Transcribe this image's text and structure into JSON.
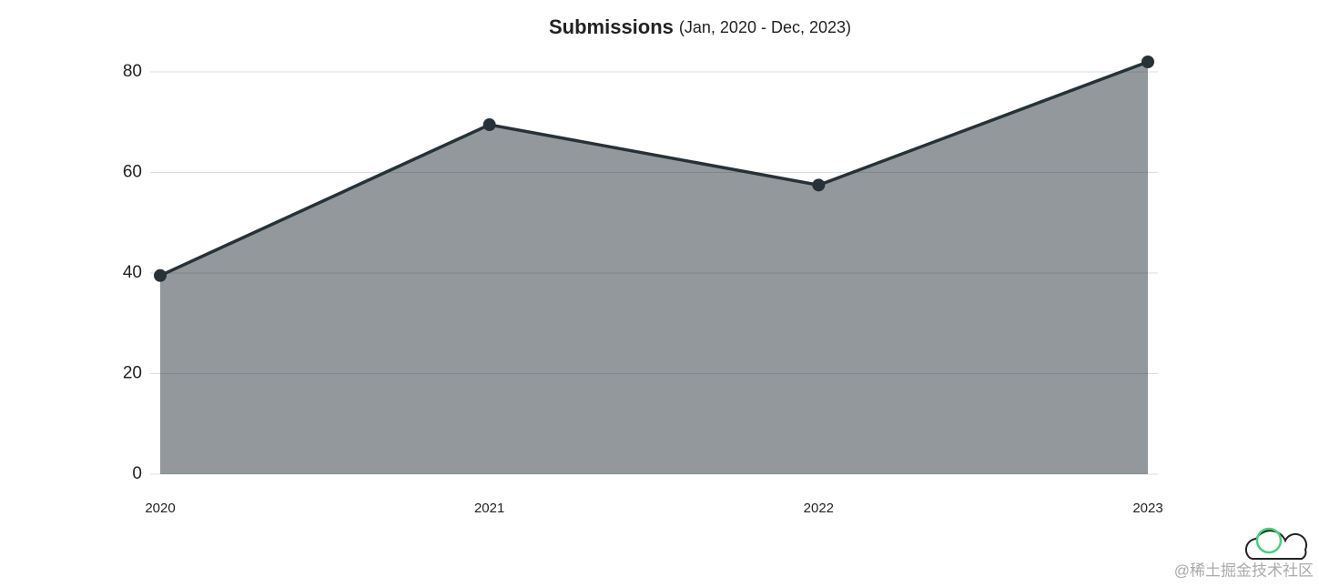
{
  "chart_data": {
    "type": "area",
    "title": "Submissions",
    "subtitle": "(Jan, 2020 - Dec, 2023)",
    "x": [
      2020,
      2021,
      2022,
      2023
    ],
    "xlim": [
      2020,
      2023
    ],
    "xticks": [
      2020,
      2021,
      2022,
      2023
    ],
    "series": [
      {
        "name": "Submissions",
        "color": "#263238",
        "values": [
          39.5,
          69.5,
          57.5,
          82
        ]
      }
    ],
    "ylim": [
      0,
      82
    ],
    "yticks": [
      0,
      20,
      40,
      60,
      80
    ],
    "grid": true
  },
  "watermark": "@稀土掘金技术社区"
}
